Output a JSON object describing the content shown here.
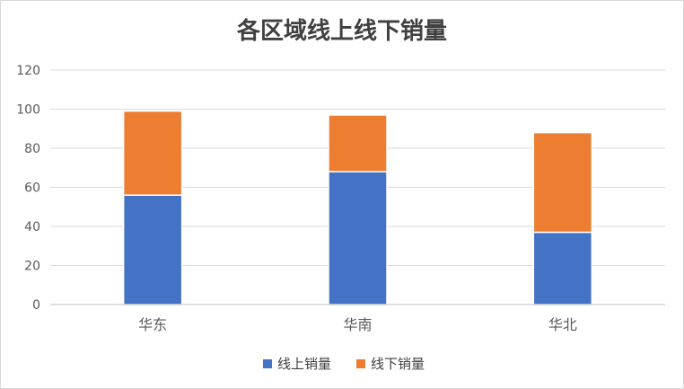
{
  "chart_data": {
    "type": "bar",
    "stacked": true,
    "title": "各区域线上线下销量",
    "categories": [
      "华东",
      "华南",
      "华北"
    ],
    "series": [
      {
        "name": "线上销量",
        "values": [
          56,
          68,
          37
        ],
        "color": "#4472c4"
      },
      {
        "name": "线下销量",
        "values": [
          43,
          29,
          51
        ],
        "color": "#ed7d31"
      }
    ],
    "ylim": [
      0,
      120
    ],
    "yticks": [
      0,
      20,
      40,
      60,
      80,
      100,
      120
    ],
    "grid": true,
    "legend_position": "bottom"
  }
}
